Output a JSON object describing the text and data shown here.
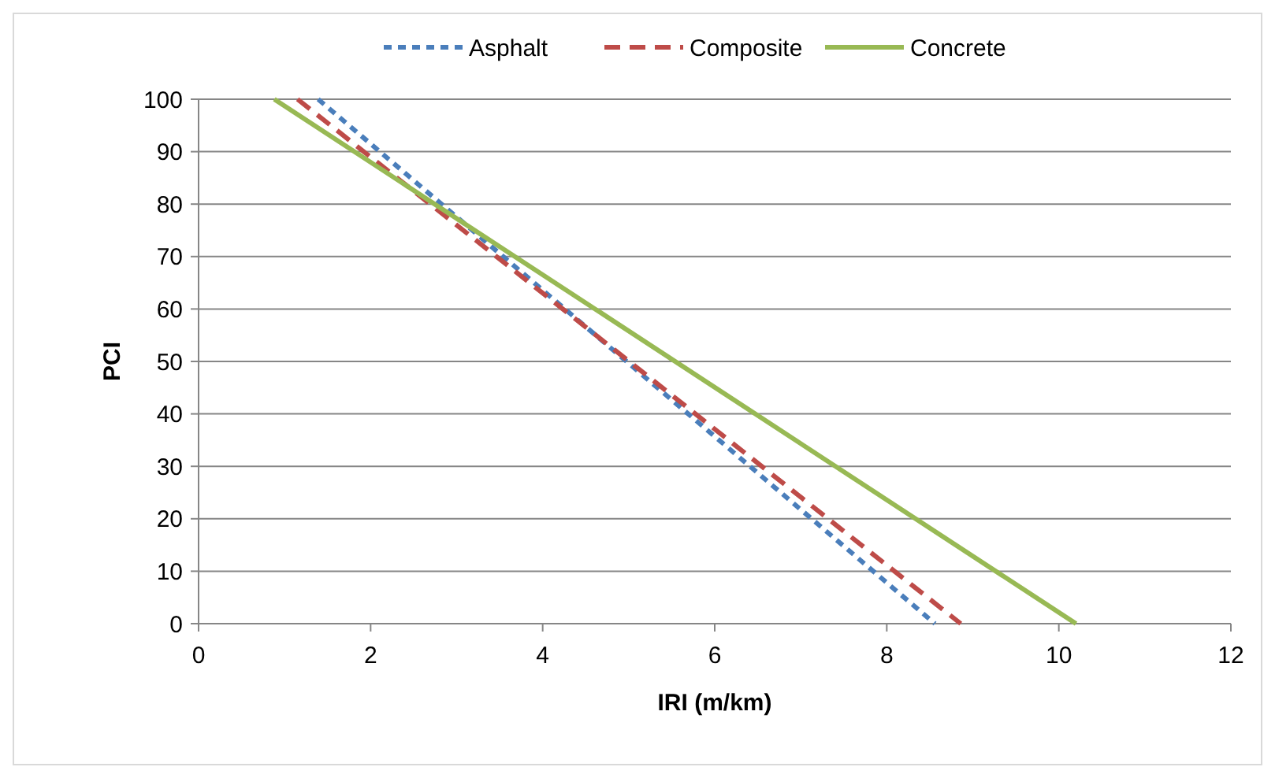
{
  "chart_data": {
    "type": "line",
    "xlabel": "IRI (m/km)",
    "ylabel": "PCI",
    "xlim": [
      0,
      12
    ],
    "xticks": [
      0,
      2,
      4,
      6,
      8,
      10,
      12
    ],
    "ylim": [
      0,
      100
    ],
    "yticks": [
      0,
      10,
      20,
      30,
      40,
      50,
      60,
      70,
      80,
      90,
      100
    ],
    "grid": "y",
    "legend": "top",
    "series": [
      {
        "name": "Asphalt",
        "color": "#4a7ebb",
        "line_style": "dotted",
        "x": [
          1.39,
          8.56
        ],
        "values": [
          100,
          0
        ]
      },
      {
        "name": "Composite",
        "color": "#be4b48",
        "line_style": "dashed",
        "x": [
          1.15,
          8.86
        ],
        "values": [
          100,
          0
        ]
      },
      {
        "name": "Concrete",
        "color": "#98b954",
        "line_style": "solid",
        "x": [
          0.88,
          10.2
        ],
        "values": [
          100,
          0
        ]
      }
    ]
  }
}
